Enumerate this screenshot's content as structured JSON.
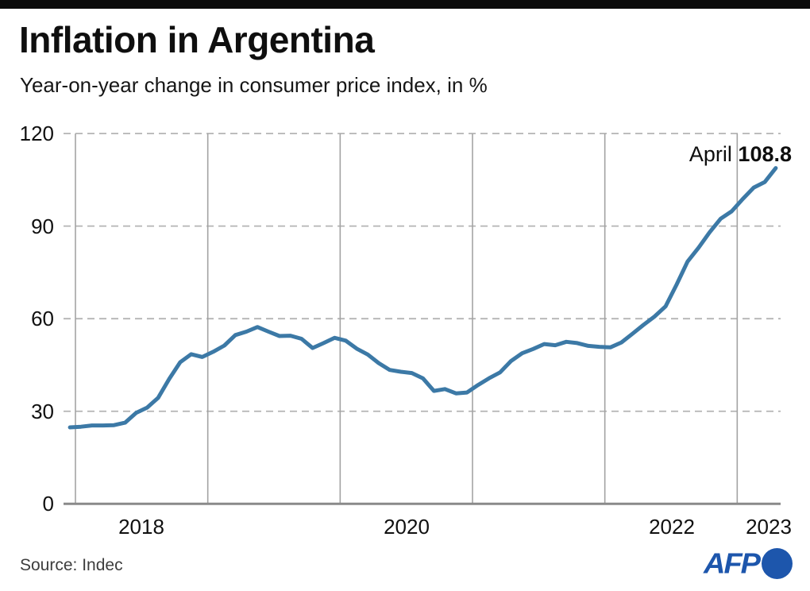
{
  "header": {
    "title": "Inflation in Argentina",
    "subtitle": "Year-on-year change in consumer price index, in %"
  },
  "annotation": {
    "label": "April ",
    "value": "108.8"
  },
  "footer": {
    "source": "Source: Indec",
    "logo_text": "AFP"
  },
  "colors": {
    "line": "#3c79a6",
    "afp_blue": "#1d56ac",
    "grid_dashed": "#b4b4b4",
    "grid_year": "#a3a3a3",
    "baseline": "#8a8a8a",
    "topbar": "#0a0a0a"
  },
  "chart_data": {
    "type": "line",
    "title": "Inflation in Argentina",
    "subtitle": "Year-on-year change in consumer price index, in %",
    "unit": "%",
    "ylim": [
      0,
      120
    ],
    "yticks": [
      0,
      30,
      60,
      90,
      120
    ],
    "xticks": [
      "2018",
      "2020",
      "2022",
      "2023"
    ],
    "grid": "horizontal dashed + vertical year lines",
    "legend_position": "none",
    "annotation": "April 108.8",
    "x_start": "2017-12",
    "x_end": "2023-04",
    "x_step": "monthly",
    "series": [
      {
        "name": "Year-on-year CPI change (%)",
        "values": [
          24.8,
          25.0,
          25.4,
          25.4,
          25.5,
          26.3,
          29.5,
          31.2,
          34.4,
          40.5,
          45.9,
          48.5,
          47.6,
          49.3,
          51.3,
          54.7,
          55.8,
          57.3,
          55.8,
          54.4,
          54.5,
          53.5,
          50.5,
          52.1,
          53.8,
          52.9,
          50.3,
          48.4,
          45.6,
          43.4,
          42.8,
          42.4,
          40.7,
          36.6,
          37.2,
          35.8,
          36.1,
          38.5,
          40.7,
          42.6,
          46.3,
          48.8,
          50.2,
          51.8,
          51.4,
          52.5,
          52.1,
          51.2,
          50.9,
          50.7,
          52.3,
          55.1,
          58.0,
          60.7,
          64.0,
          71.0,
          78.5,
          83.0,
          88.0,
          92.4,
          94.8,
          98.8,
          102.5,
          104.3,
          108.8
        ]
      }
    ]
  }
}
